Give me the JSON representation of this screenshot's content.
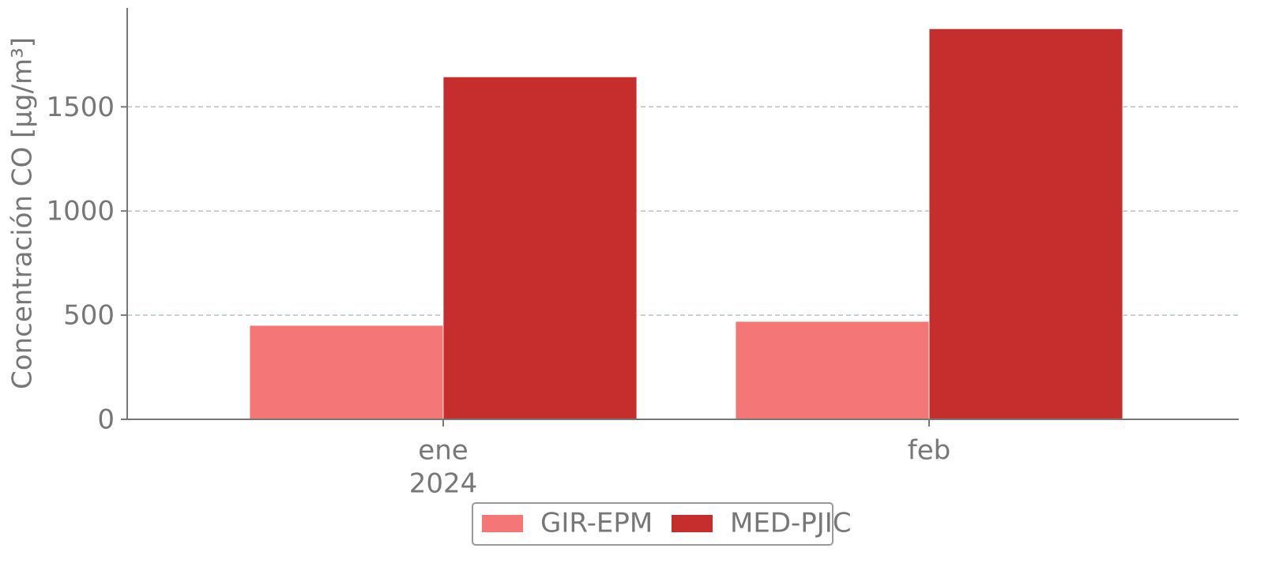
{
  "chart_data": {
    "type": "bar",
    "y_label": "Concentración CO [μg/m³]",
    "categories": [
      "ene",
      "feb"
    ],
    "category_sublabels": [
      "2024",
      null
    ],
    "series": [
      {
        "name": "GIR-EPM",
        "color": "#f47676",
        "values": [
          451,
          470
        ]
      },
      {
        "name": "MED-PJIC",
        "color": "#c62d2d",
        "values": [
          1644,
          1875
        ]
      }
    ],
    "ylim": [
      0,
      1975
    ],
    "yticks": [
      0,
      500,
      1000,
      1500
    ],
    "grid": true,
    "legend": "lower center"
  }
}
